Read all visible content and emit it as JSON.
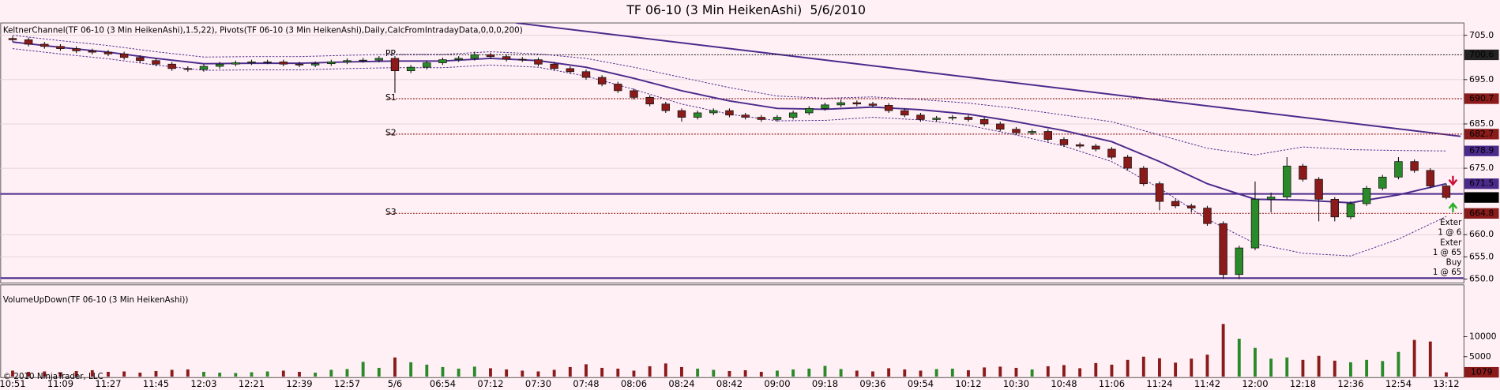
{
  "chart_data": {
    "type": "candlestick",
    "title": "TF 06-10 (3 Min HeikenAshi)  5/6/2010",
    "price_panel_label": "KeltnerChannel(TF 06-10 (3 Min HeikenAshi),1.5,22), Pivots(TF 06-10 (3 Min HeikenAshi),Daily,CalcFromIntradayData,0,0,0,200)",
    "volume_panel_label": "VolumeUpDown(TF 06-10 (3 Min HeikenAshi))",
    "copyright": "© 2010 NinjaTrader, LLC",
    "categories": [
      "10:51",
      null,
      null,
      "11:09",
      null,
      null,
      "11:27",
      null,
      null,
      "11:45",
      null,
      null,
      "12:03",
      null,
      null,
      "12:21",
      null,
      null,
      "12:39",
      null,
      null,
      "12:57",
      null,
      null,
      "5/6",
      null,
      null,
      "06:54",
      null,
      null,
      "07:12",
      null,
      null,
      "07:30",
      null,
      null,
      "07:48",
      null,
      null,
      "08:06",
      null,
      null,
      "08:24",
      null,
      null,
      "08:42",
      null,
      null,
      "09:00",
      null,
      null,
      "09:18",
      null,
      null,
      "09:36",
      null,
      null,
      "09:54",
      null,
      null,
      "10:12",
      null,
      null,
      "10:30",
      null,
      null,
      "10:48",
      null,
      null,
      "11:06",
      null,
      null,
      "11:24",
      null,
      null,
      "11:42",
      null,
      null,
      "12:00",
      null,
      null,
      "12:18",
      null,
      null,
      "12:36",
      null,
      null,
      "12:54",
      null,
      null,
      "13:12"
    ],
    "ohlc": [
      [
        704.3,
        704.8,
        703.5,
        704
      ],
      [
        704,
        704.5,
        702.5,
        703
      ],
      [
        703,
        703.5,
        702,
        702.5
      ],
      [
        702.5,
        703,
        701.5,
        702
      ],
      [
        702,
        702.5,
        701,
        701.5
      ],
      [
        701.5,
        702,
        700.7,
        701.2
      ],
      [
        701.2,
        701.7,
        700.3,
        700.8
      ],
      [
        700.8,
        701.3,
        699.5,
        700
      ],
      [
        700,
        700.5,
        698.8,
        699.3
      ],
      [
        699.3,
        699.8,
        698,
        698.5
      ],
      [
        698.5,
        699,
        697,
        697.5
      ],
      [
        697.5,
        698,
        696.8,
        697.3
      ],
      [
        697.3,
        698.5,
        696.8,
        698
      ],
      [
        698,
        699,
        697.5,
        698.5
      ],
      [
        698.5,
        699.3,
        698,
        698.8
      ],
      [
        698.8,
        699.5,
        698.3,
        699
      ],
      [
        699,
        699.5,
        698.5,
        699
      ],
      [
        699,
        699.5,
        698,
        698.5
      ],
      [
        698.5,
        699,
        697.8,
        698.3
      ],
      [
        698.3,
        699.1,
        697.8,
        698.6
      ],
      [
        698.6,
        699.5,
        698.1,
        699
      ],
      [
        699,
        699.8,
        698.5,
        699.3
      ],
      [
        699.3,
        699.9,
        698.8,
        699.4
      ],
      [
        699.4,
        700.3,
        698.9,
        699.8
      ],
      [
        699.8,
        700.3,
        692,
        697
      ],
      [
        697,
        698.3,
        696.5,
        697.8
      ],
      [
        697.8,
        699.3,
        697.3,
        698.8
      ],
      [
        698.8,
        700,
        698.3,
        699.5
      ],
      [
        699.5,
        700.3,
        699,
        699.8
      ],
      [
        699.8,
        701.3,
        699.3,
        700.6
      ],
      [
        700.6,
        701.1,
        699.7,
        700.2
      ],
      [
        700.2,
        700.7,
        699.1,
        699.6
      ],
      [
        699.6,
        700.1,
        699,
        699.5
      ],
      [
        699.5,
        700,
        698,
        698.5
      ],
      [
        698.5,
        699,
        697,
        697.5
      ],
      [
        697.5,
        698,
        696.3,
        696.8
      ],
      [
        696.8,
        697.3,
        695,
        695.5
      ],
      [
        695.5,
        696,
        693.5,
        694
      ],
      [
        694,
        694.5,
        692,
        692.5
      ],
      [
        692.5,
        693,
        690.5,
        691
      ],
      [
        691,
        691.5,
        689,
        689.5
      ],
      [
        689.5,
        690,
        687.5,
        688
      ],
      [
        688,
        688.5,
        685.5,
        686.5
      ],
      [
        686.5,
        688,
        686,
        687.5
      ],
      [
        687.5,
        688.5,
        687,
        688
      ],
      [
        688,
        688.5,
        686.5,
        687
      ],
      [
        687,
        687.5,
        686,
        686.5
      ],
      [
        686.5,
        687,
        685.5,
        686
      ],
      [
        686,
        687,
        685.5,
        686.5
      ],
      [
        686.5,
        688,
        686,
        687.5
      ],
      [
        687.5,
        689,
        687,
        688.5
      ],
      [
        688.5,
        689.8,
        688,
        689.3
      ],
      [
        689.3,
        690.5,
        688.8,
        689.8
      ],
      [
        689.8,
        690.3,
        689,
        689.5
      ],
      [
        689.5,
        690,
        688.7,
        689.2
      ],
      [
        689.2,
        689.7,
        687.5,
        688
      ],
      [
        688,
        688.5,
        686.5,
        687
      ],
      [
        687,
        687.5,
        685.5,
        686
      ],
      [
        686,
        686.8,
        685.5,
        686.3
      ],
      [
        686.3,
        687,
        685.8,
        686.5
      ],
      [
        686.5,
        687,
        685.5,
        686
      ],
      [
        686,
        686.5,
        684.5,
        685
      ],
      [
        685,
        685.5,
        683.3,
        683.8
      ],
      [
        683.8,
        684.3,
        682.5,
        683
      ],
      [
        683,
        683.8,
        682.5,
        683.3
      ],
      [
        683.3,
        683.8,
        681,
        681.5
      ],
      [
        681.5,
        682,
        679.8,
        680.3
      ],
      [
        680.3,
        680.8,
        679.5,
        680
      ],
      [
        680,
        680.5,
        678.8,
        679.3
      ],
      [
        679.3,
        679.8,
        677,
        677.5
      ],
      [
        677.5,
        678,
        674.5,
        675
      ],
      [
        675,
        675.5,
        671,
        671.5
      ],
      [
        671.5,
        672,
        665.5,
        667.5
      ],
      [
        667.5,
        668,
        666,
        666.5
      ],
      [
        666.5,
        667,
        665,
        666
      ],
      [
        666,
        666.5,
        662,
        662.5
      ],
      [
        662.5,
        663,
        650,
        651
      ],
      [
        651,
        657.5,
        650,
        657
      ],
      [
        657,
        672,
        656.5,
        668
      ],
      [
        668,
        669.5,
        665,
        668.5
      ],
      [
        668.5,
        677.5,
        668,
        675.5
      ],
      [
        675.5,
        676,
        672,
        672.5
      ],
      [
        672.5,
        673,
        663,
        668
      ],
      [
        668,
        668.5,
        663,
        664
      ],
      [
        664,
        667.5,
        663.5,
        667
      ],
      [
        667,
        671,
        666.5,
        670.5
      ],
      [
        670.5,
        673.5,
        670,
        673
      ],
      [
        673,
        677.5,
        672.5,
        676.5
      ],
      [
        676.5,
        677,
        674,
        674.5
      ],
      [
        674.5,
        675,
        670.5,
        671
      ],
      [
        671,
        671.5,
        668,
        668.4
      ]
    ],
    "up_color": "#2a8a2a",
    "down_color": "#8b1a1a",
    "volume": [
      1500,
      1200,
      1300,
      1100,
      1400,
      1600,
      1200,
      1300,
      1000,
      1400,
      1700,
      1800,
      1200,
      1000,
      900,
      1100,
      1300,
      1500,
      1200,
      1000,
      1700,
      1900,
      3700,
      2200,
      4800,
      3600,
      3000,
      2400,
      2000,
      2500,
      2100,
      1800,
      1500,
      1300,
      1700,
      2400,
      3100,
      2200,
      2000,
      1500,
      2600,
      3300,
      2400,
      2000,
      1700,
      1400,
      1600,
      1200,
      1500,
      1800,
      2000,
      2700,
      1900,
      1500,
      1300,
      2100,
      1800,
      1500,
      1900,
      2000,
      1600,
      2300,
      2500,
      2200,
      1800,
      2600,
      2900,
      2100,
      3400,
      3000,
      4200,
      5000,
      4600,
      3500,
      4500,
      5500,
      13200,
      9500,
      7200,
      4500,
      4800,
      4200,
      5200,
      4000,
      3600,
      4200,
      3900,
      6200,
      9200,
      8800,
      1079
    ],
    "ylim": [
      649.1,
      707.8
    ],
    "yticks": [
      {
        "value": 705,
        "label": "705.0"
      },
      {
        "value": 695,
        "label": "695.0"
      },
      {
        "value": 685,
        "label": "685.0"
      },
      {
        "value": 675,
        "label": "675.0"
      },
      {
        "value": 660,
        "label": "660.0"
      },
      {
        "value": 655,
        "label": "655.0"
      },
      {
        "value": 650,
        "label": "650.0"
      }
    ],
    "y2lim": [
      0,
      23000
    ],
    "y2ticks": [
      10000,
      5000
    ],
    "grid": true,
    "keltner": {
      "color": "#4b2a8c",
      "x": [
        0,
        3,
        6,
        9,
        12,
        15,
        18,
        21,
        24,
        27,
        30,
        33,
        36,
        39,
        42,
        45,
        48,
        51,
        54,
        57,
        60,
        63,
        66,
        69,
        72,
        75,
        78,
        81,
        84,
        87,
        90
      ],
      "mid": [
        703.5,
        702.3,
        701.2,
        699.8,
        698.6,
        698.7,
        698.7,
        699,
        699.2,
        699.2,
        699.8,
        699.3,
        697.8,
        695.3,
        692.5,
        690.2,
        688.5,
        688.3,
        688.8,
        688.2,
        687.2,
        685.5,
        683.5,
        681,
        676.5,
        671.5,
        668,
        667.8,
        667.2,
        669,
        671.5
      ],
      "upper": [
        705,
        703.8,
        702.7,
        701.3,
        700.1,
        700.2,
        700.2,
        700.5,
        700.7,
        700.7,
        701.3,
        700.8,
        699.8,
        697.8,
        695.5,
        693.2,
        691.3,
        690.8,
        691.1,
        690.5,
        689.7,
        688.5,
        687,
        685.5,
        682.5,
        679.5,
        678,
        679.8,
        679.2,
        679,
        678.9
      ],
      "lower": [
        702,
        700.8,
        699.7,
        698.3,
        697.1,
        697.2,
        697.2,
        697.5,
        697.7,
        697.7,
        698.3,
        697.8,
        695.8,
        692.8,
        689.5,
        687.2,
        685.7,
        685.8,
        686.5,
        685.9,
        684.7,
        682.5,
        680,
        676.5,
        670.5,
        663.5,
        658,
        655.8,
        655.2,
        659,
        664.1
      ]
    },
    "pivots": [
      {
        "name": "PP",
        "value": 700.6,
        "color": "#222222"
      },
      {
        "name": "S1",
        "value": 690.7,
        "color": "#8b1a1a"
      },
      {
        "name": "S2",
        "value": 682.7,
        "color": "#8b1a1a"
      },
      {
        "name": "S3",
        "value": 664.8,
        "color": "#8b1a1a"
      }
    ],
    "pivot_start": 24,
    "trendline": {
      "x": [
        31.6,
        90.9
      ],
      "y": [
        707.8,
        682.2
      ],
      "color": "#4b2a8c"
    },
    "hlines": [
      669.2,
      650.2
    ],
    "annotations": [
      "Exter",
      "1 @ 6",
      "Exter",
      "1 @ 65",
      "Buy",
      "1 @ 65"
    ]
  }
}
